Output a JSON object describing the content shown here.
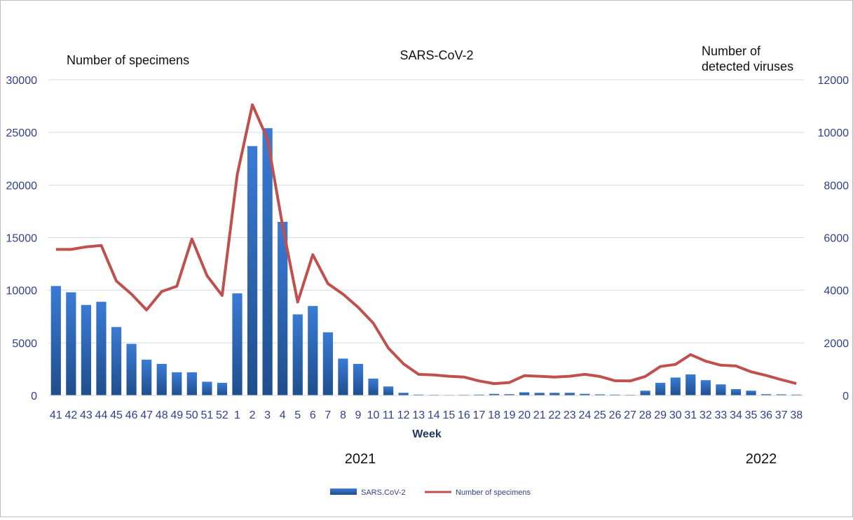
{
  "chart_data": {
    "type": "bar",
    "title": "SARS-CoV-2",
    "left_axis_title": "Number of specimens",
    "right_axis_title": "Number of detected viruses",
    "xlabel": "Week",
    "year_labels": [
      "2021",
      "2022"
    ],
    "categories": [
      "41",
      "42",
      "43",
      "44",
      "45",
      "46",
      "47",
      "48",
      "49",
      "50",
      "51",
      "52",
      "1",
      "2",
      "3",
      "4",
      "5",
      "6",
      "7",
      "8",
      "9",
      "10",
      "11",
      "12",
      "13",
      "14",
      "15",
      "16",
      "17",
      "18",
      "19",
      "20",
      "21",
      "22",
      "23",
      "24",
      "25",
      "26",
      "27",
      "28",
      "29",
      "30",
      "31",
      "32",
      "33",
      "34",
      "35",
      "36",
      "37",
      "38"
    ],
    "left_ylim": [
      0,
      30000
    ],
    "left_ticks": [
      0,
      5000,
      10000,
      15000,
      20000,
      25000,
      30000
    ],
    "right_ylim": [
      0,
      12000
    ],
    "right_ticks": [
      0,
      2000,
      4000,
      6000,
      8000,
      10000,
      12000
    ],
    "grid": true,
    "legend_position": "bottom",
    "series": [
      {
        "name": "SARS.CoV-2",
        "type": "bar",
        "axis": "left",
        "color": "#2e6bc0",
        "values": [
          10400,
          9800,
          8600,
          8900,
          6500,
          4900,
          3400,
          3000,
          2200,
          2200,
          1300,
          1200,
          9700,
          23700,
          25400,
          16500,
          7700,
          8500,
          6000,
          3500,
          3000,
          1600,
          850,
          250,
          80,
          60,
          50,
          60,
          80,
          150,
          120,
          300,
          250,
          250,
          250,
          150,
          100,
          80,
          60,
          450,
          1200,
          1700,
          2000,
          1450,
          1050,
          600,
          450,
          120,
          100,
          80
        ]
      },
      {
        "name": "Number of specimens",
        "type": "line",
        "axis": "right",
        "color": "#c0504d",
        "values": [
          5550,
          5550,
          5650,
          5700,
          4350,
          3850,
          3250,
          3950,
          4150,
          5950,
          4550,
          3800,
          8400,
          11050,
          9750,
          6450,
          3550,
          5350,
          4250,
          3850,
          3350,
          2750,
          1800,
          1200,
          800,
          780,
          730,
          700,
          550,
          450,
          490,
          750,
          730,
          700,
          730,
          800,
          720,
          560,
          550,
          720,
          1100,
          1180,
          1550,
          1300,
          1150,
          1120,
          900,
          760,
          600,
          450
        ]
      }
    ]
  }
}
